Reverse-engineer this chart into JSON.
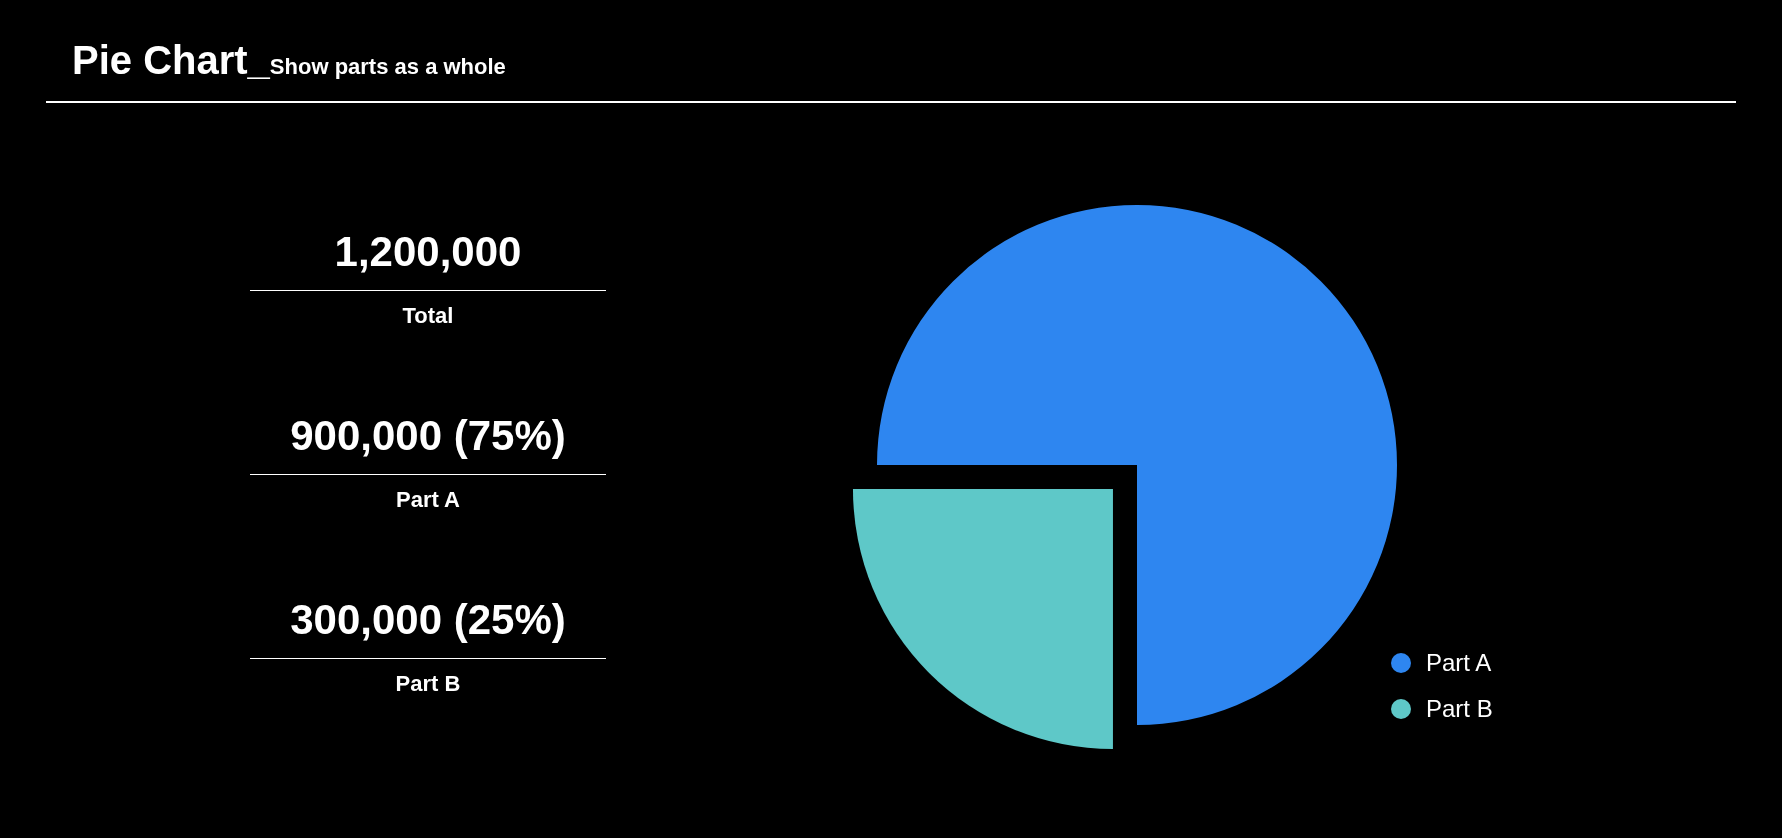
{
  "chart_data": {
    "type": "pie",
    "title": "Pie Chart_",
    "subtitle": "Show parts as a whole",
    "categories": [
      "Part A",
      "Part B"
    ],
    "values": [
      75,
      25
    ],
    "colors": [
      "#2e86f0",
      "#5ec8c8"
    ],
    "legend": "bottom right",
    "annotations": [
      "1,200,000",
      "Total",
      "900,000 (75%)",
      "Part A",
      "300,000 (25%)",
      "Part B"
    ]
  }
}
